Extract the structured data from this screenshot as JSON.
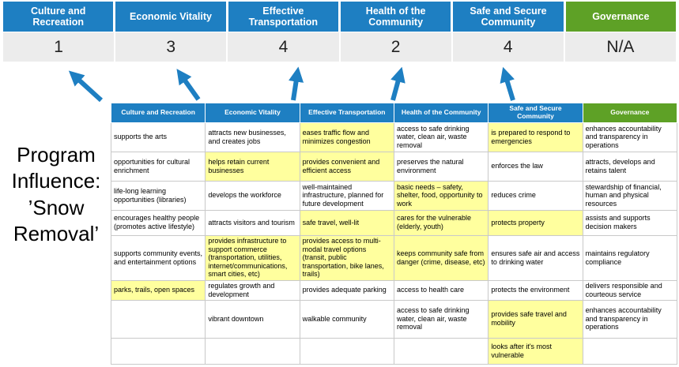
{
  "program_label": "Program Influence: ’Snow Removal’",
  "colors": {
    "blue": "#1e7fc2",
    "green": "#5ea126",
    "highlight": "#ffff9e",
    "score_background": "#ececec"
  },
  "scorecard": {
    "columns": [
      {
        "label": "Culture and Recreation",
        "score": "1",
        "color": "blue"
      },
      {
        "label": "Economic Vitality",
        "score": "3",
        "color": "blue"
      },
      {
        "label": "Effective Transportation",
        "score": "4",
        "color": "blue"
      },
      {
        "label": "Health of the Community",
        "score": "2",
        "color": "blue"
      },
      {
        "label": "Safe and Secure Community",
        "score": "4",
        "color": "blue"
      },
      {
        "label": "Governance",
        "score": "N/A",
        "color": "green"
      }
    ]
  },
  "matrix": {
    "headers": [
      {
        "label": "Culture and Recreation",
        "color": "blue"
      },
      {
        "label": "Economic Vitality",
        "color": "blue"
      },
      {
        "label": "Effective Transportation",
        "color": "blue"
      },
      {
        "label": "Health of the Community",
        "color": "blue"
      },
      {
        "label": "Safe and Secure Community",
        "color": "blue"
      },
      {
        "label": "Governance",
        "color": "green"
      }
    ],
    "rows": [
      [
        {
          "t": "supports the arts",
          "h": false
        },
        {
          "t": "attracts new businesses, and creates jobs",
          "h": false
        },
        {
          "t": "eases traffic flow and minimizes congestion",
          "h": true
        },
        {
          "t": "access to safe drinking water, clean air, waste removal",
          "h": false
        },
        {
          "t": "is prepared to respond to emergencies",
          "h": true
        },
        {
          "t": "enhances accountability and transparency in operations",
          "h": false
        }
      ],
      [
        {
          "t": "opportunities for cultural enrichment",
          "h": false
        },
        {
          "t": "helps retain current businesses",
          "h": true
        },
        {
          "t": "provides convenient and efficient access",
          "h": true
        },
        {
          "t": "preserves the natural environment",
          "h": false
        },
        {
          "t": "enforces the law",
          "h": false
        },
        {
          "t": "attracts, develops and retains talent",
          "h": false
        }
      ],
      [
        {
          "t": "life-long learning opportunities (libraries)",
          "h": false
        },
        {
          "t": "develops the workforce",
          "h": false
        },
        {
          "t": "well-maintained infrastructure, planned for future development",
          "h": false
        },
        {
          "t": "basic needs – safety, shelter, food, opportunity to work",
          "h": true
        },
        {
          "t": "reduces crime",
          "h": false
        },
        {
          "t": "stewardship of financial, human and physical resources",
          "h": false
        }
      ],
      [
        {
          "t": "encourages healthy people (promotes active lifestyle)",
          "h": false
        },
        {
          "t": "attracts visitors and tourism",
          "h": false
        },
        {
          "t": "safe travel, well-lit",
          "h": true
        },
        {
          "t": "cares for the vulnerable (elderly, youth)",
          "h": true
        },
        {
          "t": "protects property",
          "h": true
        },
        {
          "t": "assists and supports decision makers",
          "h": false
        }
      ],
      [
        {
          "t": "supports community events, and entertainment options",
          "h": false
        },
        {
          "t": "provides infrastructure to support commerce (transportation, utilities, internet/communications, smart cities, etc)",
          "h": true
        },
        {
          "t": "provides access to multi-modal travel options (transit, public transportation, bike lanes, trails)",
          "h": true
        },
        {
          "t": "keeps community safe from danger (crime, disease, etc)",
          "h": true
        },
        {
          "t": "ensures safe air and access to drinking water",
          "h": false
        },
        {
          "t": "maintains regulatory compliance",
          "h": false
        }
      ],
      [
        {
          "t": "parks, trails, open spaces",
          "h": true
        },
        {
          "t": "regulates growth and development",
          "h": false
        },
        {
          "t": "provides adequate parking",
          "h": false
        },
        {
          "t": "access to health care",
          "h": false
        },
        {
          "t": "protects the environment",
          "h": false
        },
        {
          "t": "delivers responsible and courteous service",
          "h": false
        }
      ],
      [
        {
          "t": "",
          "h": false
        },
        {
          "t": "vibrant downtown",
          "h": false
        },
        {
          "t": "walkable community",
          "h": false
        },
        {
          "t": "access to safe drinking water, clean air, waste removal",
          "h": false
        },
        {
          "t": "provides safe travel and mobility",
          "h": true
        },
        {
          "t": "enhances accountability and transparency in operations",
          "h": false
        }
      ],
      [
        {
          "t": "",
          "h": false
        },
        {
          "t": "",
          "h": false
        },
        {
          "t": "",
          "h": false
        },
        {
          "t": "",
          "h": false
        },
        {
          "t": "looks after it's most vulnerable",
          "h": true
        },
        {
          "t": "",
          "h": false
        }
      ]
    ]
  }
}
